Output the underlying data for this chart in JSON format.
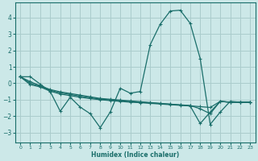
{
  "xlabel": "Humidex (Indice chaleur)",
  "bg_color": "#cce8e8",
  "grid_color": "#aacccc",
  "line_color": "#1a6e6a",
  "xlim": [
    -0.5,
    23.5
  ],
  "ylim": [
    -3.6,
    4.9
  ],
  "xticks": [
    0,
    1,
    2,
    3,
    4,
    5,
    6,
    7,
    8,
    9,
    10,
    11,
    12,
    13,
    14,
    15,
    16,
    17,
    18,
    19,
    20,
    21,
    22,
    23
  ],
  "yticks": [
    -3,
    -2,
    -1,
    0,
    1,
    2,
    3,
    4
  ],
  "series": [
    [
      0.4,
      0.4,
      -0.05,
      -0.5,
      -1.7,
      -0.85,
      -1.45,
      -1.85,
      -2.7,
      -1.75,
      -0.3,
      -0.6,
      -0.5,
      2.35,
      3.6,
      4.4,
      4.45,
      3.65,
      1.5,
      -2.5,
      -1.75,
      -1.1,
      -1.15,
      -1.15
    ],
    [
      0.4,
      0.1,
      -0.15,
      -0.38,
      -0.52,
      -0.62,
      -0.72,
      -0.82,
      -0.92,
      -0.97,
      -1.02,
      -1.07,
      -1.12,
      -1.17,
      -1.22,
      -1.27,
      -1.32,
      -1.37,
      -1.42,
      -1.47,
      -1.1,
      -1.15,
      -1.15,
      -1.15
    ],
    [
      0.4,
      0.0,
      -0.18,
      -0.42,
      -0.58,
      -0.68,
      -0.78,
      -0.88,
      -0.96,
      -1.01,
      -1.06,
      -1.11,
      -1.15,
      -1.19,
      -1.23,
      -1.27,
      -1.31,
      -1.35,
      -1.55,
      -1.85,
      -1.1,
      -1.15,
      -1.15,
      -1.15
    ],
    [
      0.4,
      -0.08,
      -0.22,
      -0.48,
      -0.65,
      -0.75,
      -0.85,
      -0.93,
      -1.0,
      -1.05,
      -1.1,
      -1.15,
      -1.18,
      -1.22,
      -1.26,
      -1.3,
      -1.34,
      -1.38,
      -2.45,
      -1.75,
      -1.1,
      -1.15,
      -1.15,
      -1.15
    ]
  ]
}
